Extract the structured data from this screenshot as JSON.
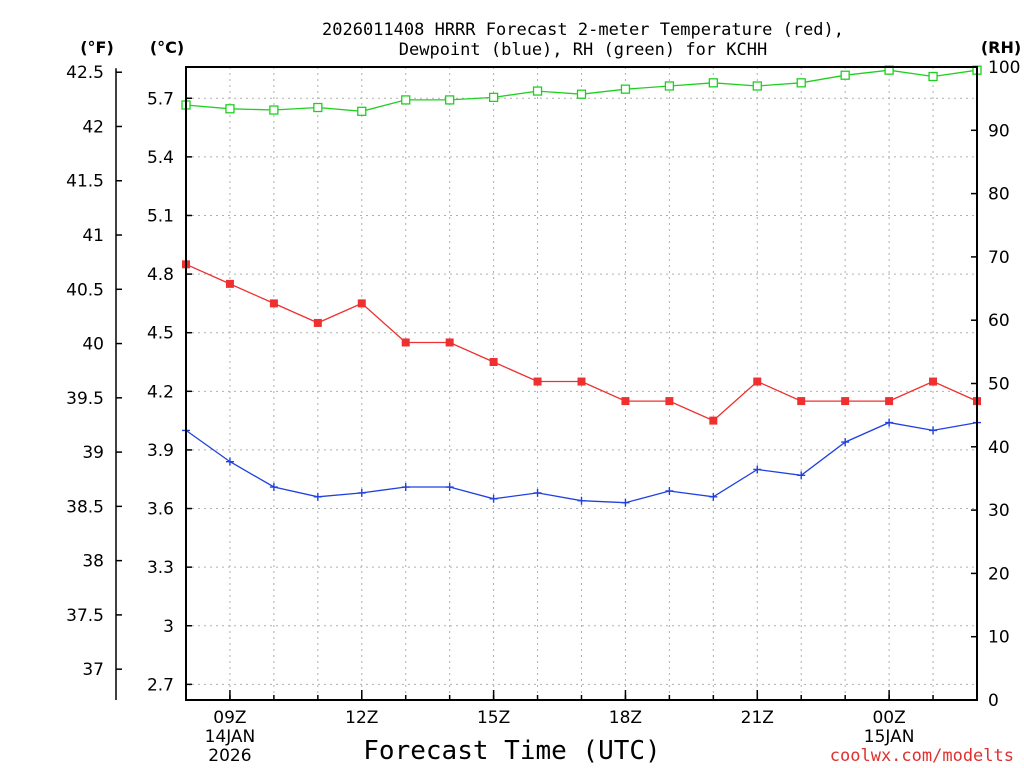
{
  "chart_data": {
    "type": "line",
    "title_line1": "2026011408 HRRR Forecast 2-meter Temperature (red),",
    "title_line2": "Dewpoint (blue), RH (green) for KCHH",
    "xlabel": "Forecast Time (UTC)",
    "credit": "coolwx.com/modelts",
    "left_unit_f": "(°F)",
    "left_unit_c": "(°C)",
    "right_unit": "(RH)",
    "grid": true,
    "x_range_hours": [
      8,
      26
    ],
    "celsius_range": [
      2.62,
      5.86
    ],
    "rh_range": [
      0,
      100
    ],
    "fahrenheit_ticks": [
      "42.5",
      "42",
      "41.5",
      "41",
      "40.5",
      "40",
      "39.5",
      "39",
      "38.5",
      "38",
      "37.5",
      "37"
    ],
    "celsius_ticks": [
      "5.7",
      "5.4",
      "5.1",
      "4.8",
      "4.5",
      "4.2",
      "3.9",
      "3.6",
      "3.3",
      "3",
      "2.7"
    ],
    "rh_ticks": [
      "100",
      "90",
      "80",
      "70",
      "60",
      "50",
      "40",
      "30",
      "20",
      "10",
      "0"
    ],
    "x_ticks": [
      {
        "hour": 9,
        "lines": [
          "09Z",
          "14JAN",
          "2026"
        ]
      },
      {
        "hour": 12,
        "lines": [
          "12Z"
        ]
      },
      {
        "hour": 15,
        "lines": [
          "15Z"
        ]
      },
      {
        "hour": 18,
        "lines": [
          "18Z"
        ]
      },
      {
        "hour": 21,
        "lines": [
          "21Z"
        ]
      },
      {
        "hour": 24,
        "lines": [
          "00Z",
          "15JAN"
        ]
      }
    ],
    "hours": [
      8,
      9,
      10,
      11,
      12,
      13,
      14,
      15,
      16,
      17,
      18,
      19,
      20,
      21,
      22,
      23,
      24,
      25,
      26
    ],
    "series": [
      {
        "name": "Temperature",
        "unit": "C",
        "color": "#ee3030",
        "marker": "filled-square",
        "values": [
          4.85,
          4.75,
          4.65,
          4.55,
          4.65,
          4.45,
          4.45,
          4.35,
          4.25,
          4.25,
          4.15,
          4.15,
          4.05,
          4.25,
          4.15,
          4.15,
          4.15,
          4.25,
          4.15
        ]
      },
      {
        "name": "Dewpoint",
        "unit": "C",
        "color": "#2040e0",
        "marker": "plus",
        "values": [
          4.0,
          3.84,
          3.71,
          3.66,
          3.68,
          3.71,
          3.71,
          3.65,
          3.68,
          3.64,
          3.63,
          3.69,
          3.66,
          3.8,
          3.77,
          3.94,
          4.04,
          4.0,
          4.04
        ]
      },
      {
        "name": "RH",
        "unit": "%",
        "color": "#20d020",
        "marker": "open-square",
        "values": [
          94,
          93.4,
          93.2,
          93.6,
          93,
          94.8,
          94.8,
          95.2,
          96.2,
          95.7,
          96.5,
          97,
          97.5,
          97,
          97.5,
          98.7,
          99.5,
          98.5,
          99.5
        ]
      }
    ]
  }
}
